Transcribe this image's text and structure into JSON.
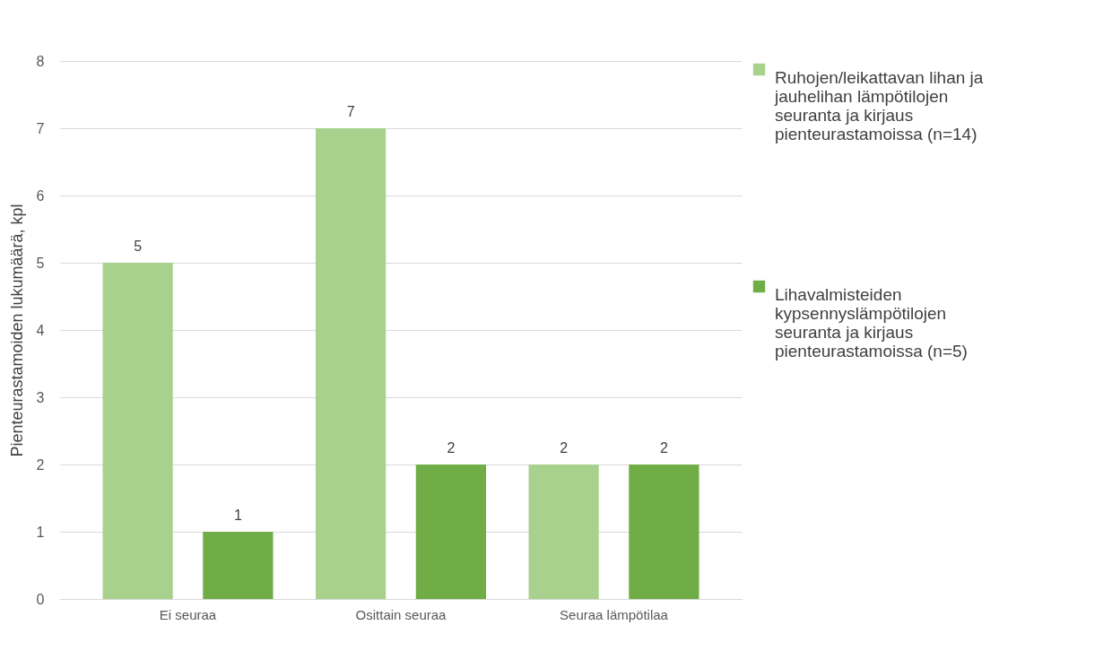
{
  "chart_data": {
    "type": "bar",
    "ylabel": "Pienteurastamoiden lukumäärä, kpl",
    "categories": [
      "Ei seuraa",
      "Osittain seuraa",
      "Seuraa lämpötilaa"
    ],
    "series": [
      {
        "name": "Ruhojen/leikattavan lihan ja jauhelihan lämpötilojen seuranta ja kirjaus pienteurastamoissa (n=14)",
        "color": "#a9d18e",
        "values": [
          5,
          7,
          2
        ]
      },
      {
        "name": "Lihavalmisteiden kypsennyslämpötilojen seuranta ja kirjaus pienteurastamoissa (n=5)",
        "color": "#70ad47",
        "values": [
          1,
          2,
          2
        ]
      }
    ],
    "ylim": [
      0,
      8
    ],
    "yticks": [
      0,
      1,
      2,
      3,
      4,
      5,
      6,
      7,
      8
    ],
    "grid": "y",
    "legend": "right",
    "data_labels": true
  }
}
